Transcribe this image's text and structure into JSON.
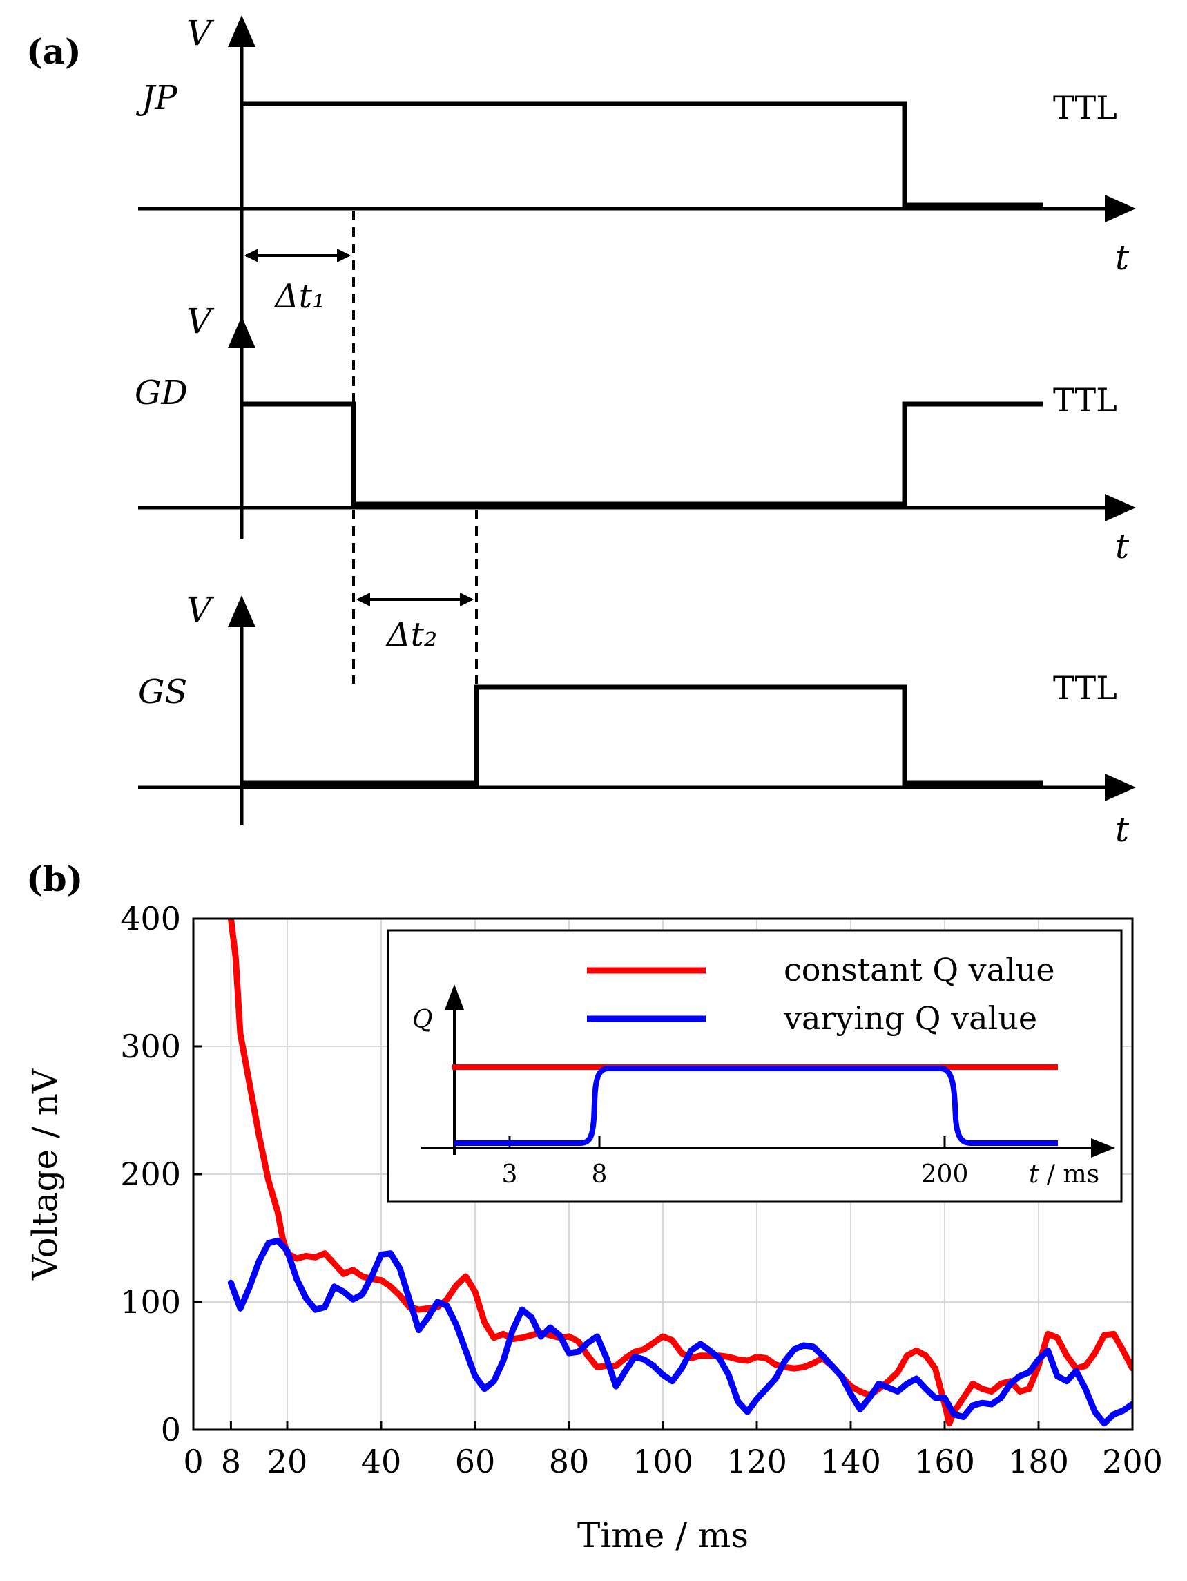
{
  "panel_a": {
    "label": "(a)",
    "y_symbol": "V",
    "t_symbol": "t",
    "signals": [
      {
        "name": "JP",
        "level_text": "TTL"
      },
      {
        "name": "GD",
        "level_text": "TTL"
      },
      {
        "name": "GS",
        "level_text": "TTL"
      }
    ],
    "delays": [
      "Δt₁",
      "Δt₂"
    ]
  },
  "panel_b": {
    "label": "(b)"
  },
  "chart_data": {
    "type": "line",
    "title": "",
    "xlabel": "Time / ms",
    "ylabel": "Voltage / nV",
    "xlim": [
      0,
      200
    ],
    "ylim": [
      0,
      400
    ],
    "xticks": [
      0,
      8,
      20,
      40,
      60,
      80,
      100,
      120,
      140,
      160,
      180,
      200
    ],
    "xtick_labels": [
      "0",
      "8",
      "20",
      "40",
      "60",
      "80",
      "100",
      "120",
      "140",
      "160",
      "180",
      "200"
    ],
    "yticks": [
      0,
      100,
      200,
      300,
      400
    ],
    "ytick_labels": [
      "0",
      "100",
      "200",
      "300",
      "400"
    ],
    "grid": true,
    "series": [
      {
        "name": "constant Q value",
        "color": "#ff0000",
        "x": [
          8,
          9,
          10,
          12,
          14,
          16,
          18,
          19,
          20,
          22,
          24,
          26,
          28,
          30,
          32,
          34,
          36,
          38,
          40,
          42,
          44,
          46,
          48,
          50,
          52,
          54,
          56,
          58,
          60,
          62,
          64,
          66,
          68,
          70,
          72,
          74,
          76,
          78,
          80,
          82,
          84,
          86,
          88,
          90,
          92,
          94,
          96,
          98,
          100,
          102,
          104,
          106,
          108,
          110,
          112,
          114,
          116,
          118,
          120,
          122,
          124,
          126,
          128,
          130,
          132,
          134,
          136,
          138,
          140,
          142,
          144,
          146,
          148,
          150,
          152,
          154,
          156,
          158,
          160,
          161,
          162,
          164,
          166,
          168,
          170,
          172,
          174,
          176,
          178,
          180,
          182,
          184,
          186,
          188,
          190,
          192,
          194,
          196,
          198,
          200
        ],
        "y": [
          400,
          370,
          310,
          270,
          230,
          195,
          170,
          150,
          138,
          134,
          136,
          135,
          138,
          130,
          122,
          125,
          120,
          118,
          117,
          112,
          105,
          96,
          94,
          95,
          96,
          102,
          113,
          120,
          108,
          84,
          72,
          75,
          71,
          72,
          74,
          76,
          74,
          72,
          73,
          69,
          58,
          49,
          50,
          50,
          56,
          61,
          63,
          68,
          73,
          70,
          60,
          56,
          58,
          58,
          58,
          57,
          55,
          54,
          57,
          56,
          51,
          49,
          48,
          49,
          52,
          56,
          50,
          42,
          34,
          30,
          27,
          32,
          38,
          45,
          58,
          62,
          58,
          48,
          20,
          5,
          14,
          25,
          36,
          32,
          30,
          36,
          38,
          30,
          32,
          50,
          75,
          72,
          58,
          48,
          50,
          60,
          74,
          75,
          62,
          48
        ]
      },
      {
        "name": "varying Q value",
        "color": "#0000ff",
        "x": [
          8,
          10,
          12,
          14,
          16,
          18,
          20,
          22,
          24,
          26,
          28,
          30,
          32,
          34,
          36,
          38,
          40,
          42,
          44,
          46,
          48,
          50,
          52,
          54,
          56,
          58,
          60,
          62,
          64,
          66,
          68,
          70,
          72,
          74,
          76,
          78,
          80,
          82,
          84,
          86,
          88,
          90,
          92,
          94,
          96,
          98,
          100,
          102,
          104,
          106,
          108,
          110,
          112,
          114,
          116,
          118,
          120,
          122,
          124,
          126,
          128,
          130,
          132,
          134,
          136,
          138,
          140,
          142,
          144,
          146,
          148,
          150,
          152,
          154,
          156,
          158,
          160,
          162,
          164,
          166,
          168,
          170,
          172,
          174,
          176,
          178,
          180,
          182,
          184,
          186,
          188,
          190,
          192,
          194,
          196,
          198,
          200
        ],
        "y": [
          115,
          95,
          112,
          132,
          146,
          148,
          140,
          118,
          103,
          94,
          96,
          112,
          108,
          102,
          106,
          120,
          137,
          138,
          126,
          102,
          78,
          88,
          100,
          97,
          82,
          62,
          42,
          32,
          38,
          54,
          78,
          94,
          88,
          73,
          80,
          74,
          60,
          61,
          68,
          73,
          56,
          34,
          46,
          57,
          55,
          50,
          43,
          38,
          48,
          62,
          67,
          62,
          56,
          43,
          22,
          14,
          24,
          32,
          40,
          54,
          63,
          66,
          65,
          58,
          50,
          42,
          28,
          16,
          25,
          36,
          33,
          30,
          36,
          40,
          32,
          25,
          25,
          12,
          10,
          19,
          21,
          20,
          25,
          36,
          42,
          45,
          55,
          62,
          42,
          38,
          46,
          32,
          14,
          5,
          12,
          15,
          20
        ]
      }
    ],
    "legend": {
      "position": "top-right",
      "entries": [
        "constant Q value",
        "varying Q value"
      ]
    },
    "inset": {
      "y_symbol": "Q",
      "axis_label_var": "t",
      "axis_label_unit": " / ms",
      "tick_labels": [
        "3",
        "8",
        "200"
      ]
    }
  }
}
